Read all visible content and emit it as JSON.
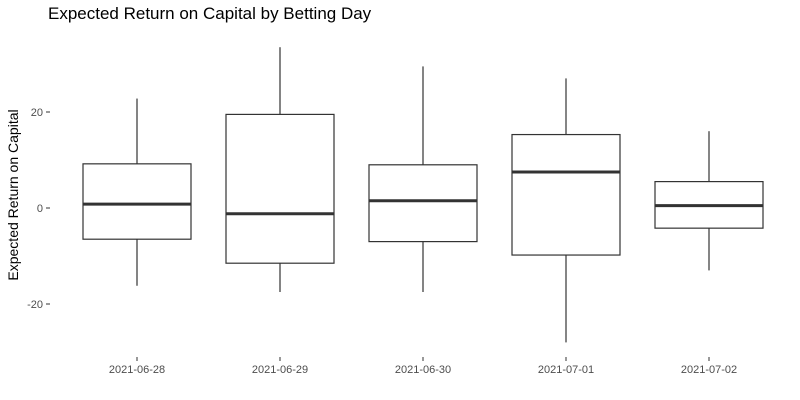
{
  "chart_data": {
    "type": "boxplot",
    "title": "Expected Return on Capital by Betting Day",
    "xlabel": "",
    "ylabel": "Expected Return on Capital",
    "ylim": [
      -30,
      34
    ],
    "yticks": [
      -20,
      0,
      20
    ],
    "grid": false,
    "legend": "none",
    "categories": [
      "2021-06-28",
      "2021-06-29",
      "2021-06-30",
      "2021-07-01",
      "2021-07-02"
    ],
    "boxes": [
      {
        "category": "2021-06-28",
        "whisker_low": -16.2,
        "q1": -6.5,
        "median": 0.8,
        "q3": 9.2,
        "whisker_high": 22.8
      },
      {
        "category": "2021-06-29",
        "whisker_low": -17.5,
        "q1": -11.5,
        "median": -1.2,
        "q3": 19.5,
        "whisker_high": 33.5
      },
      {
        "category": "2021-06-30",
        "whisker_low": -17.5,
        "q1": -7.0,
        "median": 1.5,
        "q3": 9.0,
        "whisker_high": 29.5
      },
      {
        "category": "2021-07-01",
        "whisker_low": -28.0,
        "q1": -9.8,
        "median": 7.5,
        "q3": 15.3,
        "whisker_high": 27.0
      },
      {
        "category": "2021-07-02",
        "whisker_low": -13.0,
        "q1": -4.2,
        "median": 0.5,
        "q3": 5.5,
        "whisker_high": 16.0
      }
    ]
  }
}
